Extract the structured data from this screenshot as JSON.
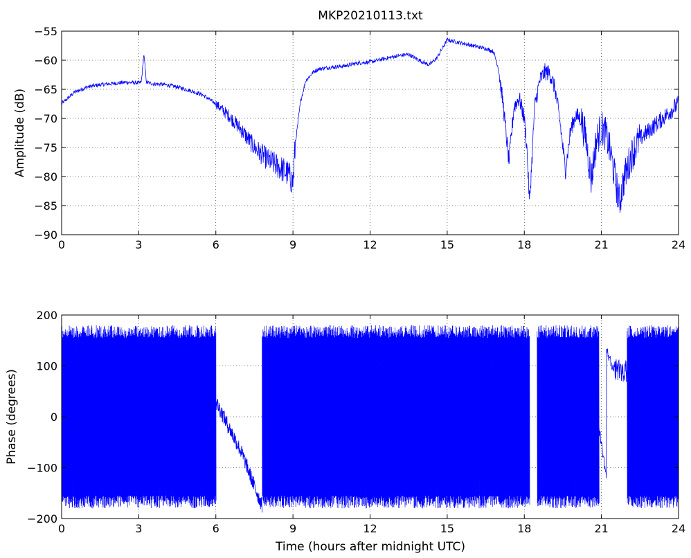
{
  "figure": {
    "title": "MKP20210113.txt"
  },
  "chart_data": [
    {
      "type": "line",
      "title": "MKP20210113.txt",
      "xlabel": "",
      "ylabel": "Amplitude (dB)",
      "xlim": [
        0,
        24
      ],
      "ylim": [
        -90,
        -55
      ],
      "xticks": [
        0,
        3,
        6,
        9,
        12,
        15,
        18,
        21,
        24
      ],
      "xtick_labels": [
        "0",
        "3",
        "6",
        "9",
        "12",
        "15",
        "18",
        "21",
        "24"
      ],
      "yticks": [
        -90,
        -85,
        -80,
        -75,
        -70,
        -65,
        -60,
        -55
      ],
      "ytick_labels": [
        "−90",
        "−85",
        "−80",
        "−75",
        "−70",
        "−65",
        "−60",
        "−55"
      ],
      "grid": true,
      "color": "#0000ff",
      "series": [
        {
          "x": [
            0,
            0.5,
            1,
            1.5,
            2,
            2.5,
            3,
            3.1,
            3.2,
            3.3,
            3.5,
            4,
            4.5,
            5,
            5.5,
            6,
            6.5,
            7,
            7.5,
            8,
            8.5,
            8.8,
            9.0,
            9.1,
            9.3,
            9.5,
            9.8,
            10,
            10.5,
            11,
            11.5,
            12,
            12.5,
            13,
            13.5,
            14,
            14.3,
            14.6,
            15,
            15.5,
            16,
            16.5,
            16.8,
            17,
            17.2,
            17.4,
            17.6,
            17.8,
            18.0,
            18.1,
            18.2,
            18.3,
            18.4,
            18.6,
            18.8,
            19.0,
            19.2,
            19.4,
            19.6,
            19.8,
            20.0,
            20.2,
            20.4,
            20.6,
            20.8,
            21.0,
            21.2,
            21.4,
            21.7,
            21.9,
            22.2,
            22.5,
            23,
            23.5,
            24
          ],
          "y": [
            -67.5,
            -65.5,
            -64.6,
            -64.2,
            -64.0,
            -63.8,
            -63.9,
            -63.8,
            -59.0,
            -63.8,
            -64.0,
            -64.2,
            -64.6,
            -65.2,
            -66.0,
            -67.5,
            -69.5,
            -72.0,
            -75.0,
            -77.0,
            -78.5,
            -79.5,
            -81.0,
            -74.0,
            -67.0,
            -63.5,
            -62.0,
            -61.5,
            -61.2,
            -61.0,
            -60.5,
            -60.3,
            -59.8,
            -59.3,
            -59.0,
            -60.2,
            -60.8,
            -59.6,
            -56.5,
            -57.0,
            -57.5,
            -58.0,
            -58.5,
            -61.5,
            -68.5,
            -77.5,
            -68.0,
            -66.5,
            -70.0,
            -75.0,
            -84.5,
            -77.0,
            -68.0,
            -63.5,
            -62.0,
            -62.3,
            -65.0,
            -71.0,
            -79.0,
            -72.0,
            -69.5,
            -70.0,
            -73.5,
            -80.5,
            -74.0,
            -71.5,
            -73.0,
            -77.0,
            -84.5,
            -80.0,
            -76.0,
            -73.5,
            -71.5,
            -69.5,
            -67.5
          ]
        }
      ]
    },
    {
      "type": "line",
      "title": "",
      "xlabel": "Time (hours after midnight UTC)",
      "ylabel": "Phase (degrees)",
      "xlim": [
        0,
        24
      ],
      "ylim": [
        -200,
        200
      ],
      "xticks": [
        0,
        3,
        6,
        9,
        12,
        15,
        18,
        21,
        24
      ],
      "xtick_labels": [
        "0",
        "3",
        "6",
        "9",
        "12",
        "15",
        "18",
        "21",
        "24"
      ],
      "yticks": [
        -200,
        -100,
        0,
        100,
        200
      ],
      "ytick_labels": [
        "−200",
        "−100",
        "0",
        "100",
        "200"
      ],
      "grid": true,
      "color": "#0000ff",
      "series": [
        {
          "wrapped_ranges": [
            [
              0,
              6.0
            ],
            [
              7.8,
              18.2
            ],
            [
              18.5,
              20.9
            ],
            [
              22.0,
              24
            ]
          ],
          "x": [
            6.0,
            6.3,
            6.6,
            7.0,
            7.3,
            7.6,
            7.8
          ],
          "y": [
            30,
            0,
            -30,
            -70,
            -110,
            -150,
            -175
          ]
        }
      ]
    }
  ]
}
